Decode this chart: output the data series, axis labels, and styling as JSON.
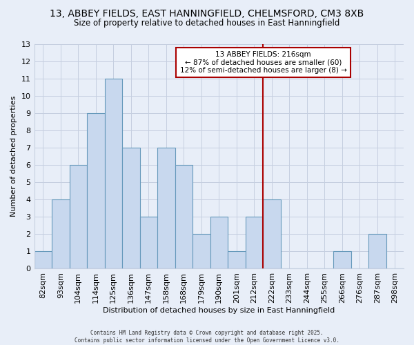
{
  "title_line1": "13, ABBEY FIELDS, EAST HANNINGFIELD, CHELMSFORD, CM3 8XB",
  "title_line2": "Size of property relative to detached houses in East Hanningfield",
  "xlabel": "Distribution of detached houses by size in East Hanningfield",
  "ylabel": "Number of detached properties",
  "bin_labels": [
    "82sqm",
    "93sqm",
    "104sqm",
    "114sqm",
    "125sqm",
    "136sqm",
    "147sqm",
    "158sqm",
    "168sqm",
    "179sqm",
    "190sqm",
    "201sqm",
    "212sqm",
    "222sqm",
    "233sqm",
    "244sqm",
    "255sqm",
    "266sqm",
    "276sqm",
    "287sqm",
    "298sqm"
  ],
  "bar_heights": [
    1,
    4,
    6,
    9,
    11,
    7,
    3,
    7,
    6,
    2,
    3,
    1,
    3,
    4,
    0,
    0,
    0,
    1,
    0,
    2,
    0
  ],
  "bar_color": "#c8d8ee",
  "bar_edge_color": "#6699bb",
  "vline_x": 12.5,
  "vline_color": "#aa0000",
  "ylim": [
    0,
    13
  ],
  "yticks": [
    0,
    1,
    2,
    3,
    4,
    5,
    6,
    7,
    8,
    9,
    10,
    11,
    12,
    13
  ],
  "annotation_title": "13 ABBEY FIELDS: 216sqm",
  "annotation_line1": "← 87% of detached houses are smaller (60)",
  "annotation_line2": "12% of semi-detached houses are larger (8) →",
  "annotation_box_color": "#ffffff",
  "annotation_box_edge": "#aa0000",
  "footer_line1": "Contains HM Land Registry data © Crown copyright and database right 2025.",
  "footer_line2": "Contains public sector information licensed under the Open Government Licence v3.0.",
  "background_color": "#e8eef8",
  "grid_color": "#c5cfe0"
}
